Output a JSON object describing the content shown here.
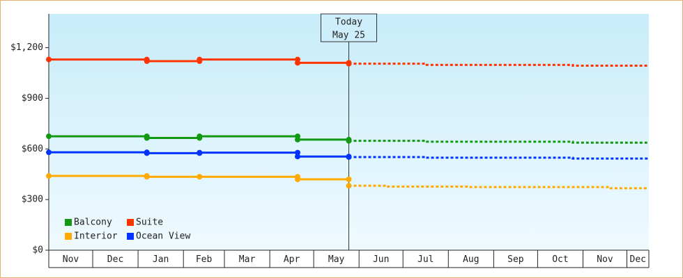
{
  "chart_data": {
    "type": "line",
    "xlim": [
      0,
      410
    ],
    "xticks": [
      {
        "value": 0,
        "label": "Nov"
      },
      {
        "value": 30,
        "label": "Dec"
      },
      {
        "value": 61,
        "label": "Jan"
      },
      {
        "value": 92,
        "label": "Feb"
      },
      {
        "value": 120,
        "label": "Mar"
      },
      {
        "value": 151,
        "label": "Apr"
      },
      {
        "value": 181,
        "label": "May"
      },
      {
        "value": 212,
        "label": "Jun"
      },
      {
        "value": 242,
        "label": "Jul"
      },
      {
        "value": 273,
        "label": "Aug"
      },
      {
        "value": 304,
        "label": "Sep"
      },
      {
        "value": 334,
        "label": "Oct"
      },
      {
        "value": 365,
        "label": "Nov"
      },
      {
        "value": 395,
        "label": "Dec"
      }
    ],
    "ylim": [
      0,
      1400
    ],
    "yticks": [
      {
        "value": 0,
        "label": "$0"
      },
      {
        "value": 300,
        "label": "$300"
      },
      {
        "value": 600,
        "label": "$600"
      },
      {
        "value": 900,
        "label": "$900"
      },
      {
        "value": 1200,
        "label": "$1,200"
      }
    ],
    "annotation": {
      "lines": [
        "Today",
        "May 25"
      ],
      "x": 205
    },
    "legend": "bottom-left",
    "series": [
      {
        "name": "Balcony",
        "color": "#119911",
        "x": [
          0,
          67,
          67,
          103,
          103,
          170,
          170,
          205
        ],
        "values": [
          675,
          675,
          665,
          665,
          675,
          675,
          655,
          655
        ],
        "forecast_x": [
          205,
          257,
          257,
          358,
          358,
          410
        ],
        "forecast_values": [
          648,
          648,
          643,
          643,
          637,
          637
        ]
      },
      {
        "name": "Suite",
        "color": "#ff3300",
        "x": [
          0,
          67,
          67,
          103,
          103,
          170,
          170,
          205
        ],
        "values": [
          1130,
          1130,
          1120,
          1120,
          1130,
          1130,
          1110,
          1110
        ],
        "forecast_x": [
          205,
          257,
          257,
          358,
          358,
          410
        ],
        "forecast_values": [
          1105,
          1105,
          1098,
          1098,
          1093,
          1093
        ]
      },
      {
        "name": "Interior",
        "color": "#ffaa00",
        "x": [
          0,
          67,
          67,
          103,
          103,
          170,
          170,
          205
        ],
        "values": [
          440,
          440,
          435,
          435,
          435,
          435,
          420,
          420
        ],
        "forecast_x": [
          205,
          231,
          231,
          287,
          287,
          383,
          383,
          410
        ],
        "forecast_values": [
          382,
          382,
          377,
          377,
          374,
          374,
          367,
          367
        ]
      },
      {
        "name": "Ocean View",
        "color": "#0033ff",
        "x": [
          0,
          67,
          67,
          103,
          103,
          170,
          170,
          205
        ],
        "values": [
          580,
          580,
          575,
          575,
          578,
          578,
          555,
          555
        ],
        "forecast_x": [
          205,
          257,
          257,
          358,
          358,
          410
        ],
        "forecast_values": [
          552,
          552,
          548,
          548,
          543,
          543
        ]
      }
    ]
  }
}
